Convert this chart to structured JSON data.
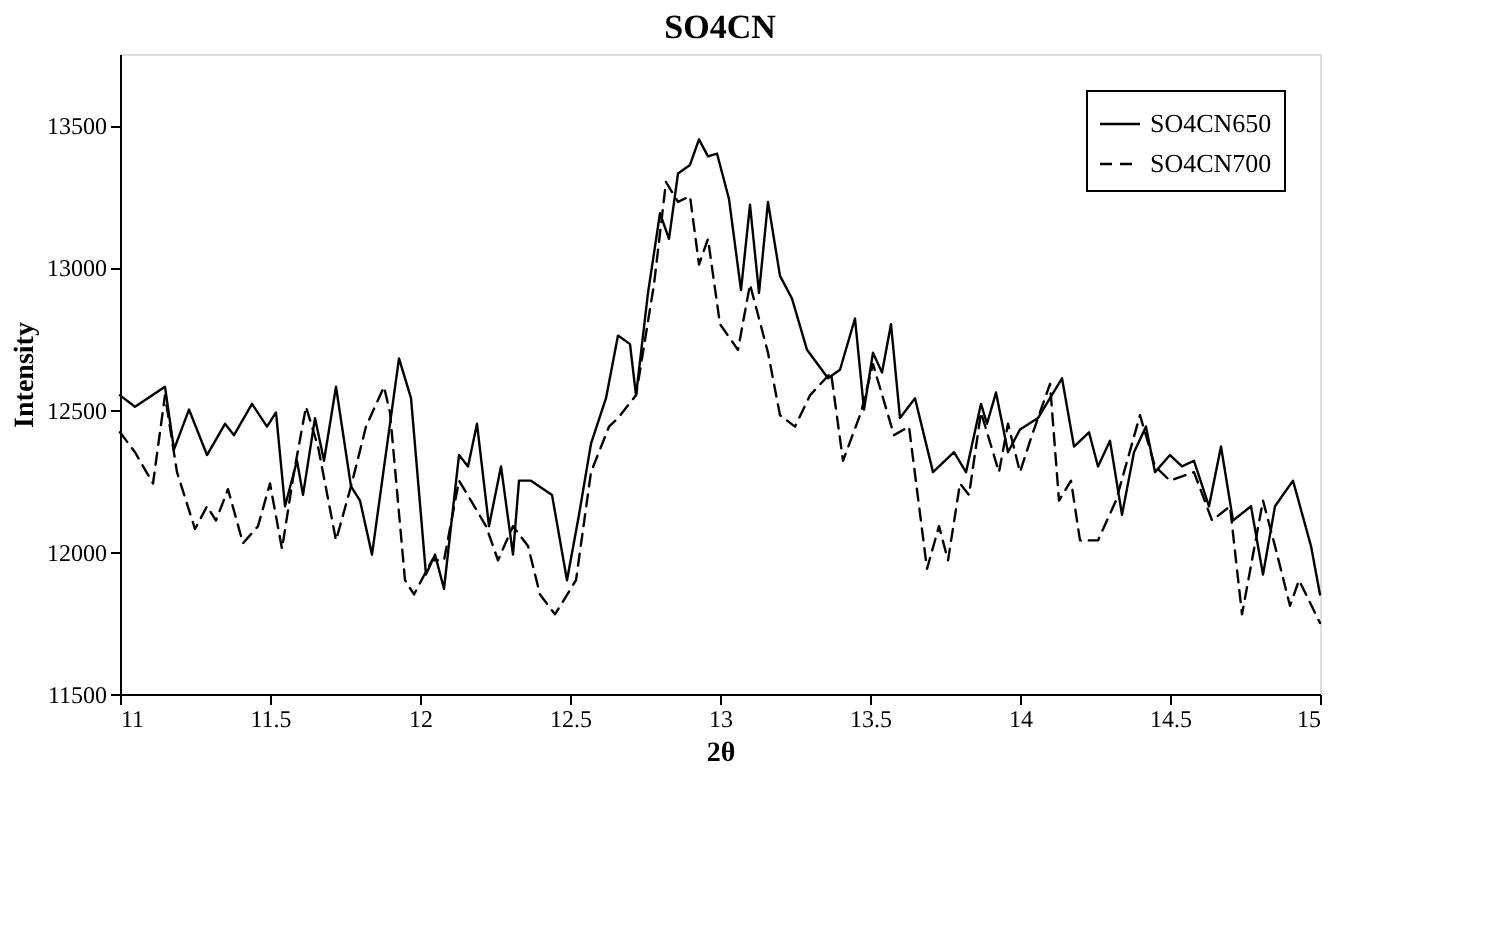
{
  "chart_data": {
    "type": "line",
    "title": "SO4CN",
    "xlabel": "2θ",
    "ylabel": "Intensity",
    "xlim": [
      11,
      15
    ],
    "xticks": [
      11,
      11.5,
      12,
      12.5,
      13,
      13.5,
      14,
      14.5,
      15
    ],
    "ylim": [
      11500,
      13750
    ],
    "yticks": [
      11500,
      12000,
      12500,
      13000,
      13500
    ],
    "grid": false,
    "legend": "top right",
    "marker": "none",
    "series": [
      {
        "name": "SO4CN650",
        "color": "#000000",
        "line_style": "solid",
        "x": [
          11.0,
          11.05,
          11.15,
          11.18,
          11.23,
          11.29,
          11.35,
          11.38,
          11.44,
          11.49,
          11.52,
          11.55,
          11.59,
          11.61,
          11.65,
          11.68,
          11.72,
          11.77,
          11.8,
          11.84,
          11.93,
          11.97,
          12.02,
          12.05,
          12.08,
          12.13,
          12.16,
          12.19,
          12.23,
          12.27,
          12.31,
          12.33,
          12.37,
          12.44,
          12.49,
          12.53,
          12.57,
          12.62,
          12.66,
          12.7,
          12.72,
          12.76,
          12.8,
          12.83,
          12.86,
          12.9,
          12.93,
          12.96,
          12.99,
          13.03,
          13.07,
          13.1,
          13.13,
          13.16,
          13.2,
          13.24,
          13.29,
          13.36,
          13.4,
          13.45,
          13.48,
          13.51,
          13.54,
          13.57,
          13.6,
          13.65,
          13.71,
          13.78,
          13.82,
          13.87,
          13.89,
          13.92,
          13.96,
          14.0,
          14.06,
          14.1,
          14.14,
          14.18,
          14.23,
          14.26,
          14.3,
          14.34,
          14.38,
          14.42,
          14.45,
          14.5,
          14.54,
          14.58,
          14.63,
          14.67,
          14.71,
          14.77,
          14.81,
          14.85,
          14.91,
          14.97,
          15.0
        ],
        "values": [
          12550,
          12510,
          12580,
          12360,
          12500,
          12340,
          12450,
          12410,
          12520,
          12440,
          12490,
          12160,
          12320,
          12200,
          12470,
          12320,
          12580,
          12230,
          12180,
          11990,
          12680,
          12540,
          11920,
          11990,
          11870,
          12340,
          12300,
          12450,
          12090,
          12300,
          11990,
          12250,
          12250,
          12200,
          11900,
          12130,
          12380,
          12540,
          12760,
          12730,
          12550,
          12910,
          13190,
          13100,
          13330,
          13360,
          13450,
          13390,
          13400,
          13240,
          12920,
          13220,
          12910,
          13230,
          12970,
          12890,
          12710,
          12610,
          12640,
          12820,
          12500,
          12700,
          12630,
          12800,
          12470,
          12540,
          12280,
          12350,
          12280,
          12520,
          12450,
          12560,
          12350,
          12430,
          12470,
          12540,
          12610,
          12370,
          12420,
          12300,
          12390,
          12130,
          12350,
          12440,
          12280,
          12340,
          12300,
          12320,
          12160,
          12370,
          12110,
          12160,
          11920,
          12160,
          12250,
          12020,
          11850
        ]
      },
      {
        "name": "SO4CN700",
        "color": "#000000",
        "line_style": "dashed",
        "x": [
          11.0,
          11.05,
          11.11,
          11.15,
          11.19,
          11.25,
          11.29,
          11.32,
          11.36,
          11.41,
          11.46,
          11.5,
          11.54,
          11.58,
          11.62,
          11.66,
          11.72,
          11.77,
          11.82,
          11.88,
          11.9,
          11.95,
          11.98,
          12.04,
          12.08,
          12.13,
          12.17,
          12.22,
          12.26,
          12.31,
          12.36,
          12.4,
          12.45,
          12.52,
          12.57,
          12.63,
          12.66,
          12.72,
          12.78,
          12.82,
          12.86,
          12.9,
          12.93,
          12.96,
          13.0,
          13.06,
          13.1,
          13.16,
          13.2,
          13.25,
          13.3,
          13.37,
          13.41,
          13.47,
          13.51,
          13.58,
          13.63,
          13.69,
          13.73,
          13.76,
          13.8,
          13.83,
          13.87,
          13.93,
          13.96,
          14.0,
          14.04,
          14.1,
          14.13,
          14.17,
          14.2,
          14.26,
          14.32,
          14.4,
          14.45,
          14.5,
          14.58,
          14.64,
          14.7,
          14.74,
          14.81,
          14.85,
          14.9,
          14.93,
          15.0
        ],
        "values": [
          12420,
          12350,
          12240,
          12550,
          12280,
          12080,
          12160,
          12110,
          12220,
          12030,
          12090,
          12240,
          12010,
          12280,
          12510,
          12370,
          12040,
          12230,
          12440,
          12580,
          12490,
          11900,
          11850,
          11970,
          11970,
          12250,
          12180,
          12090,
          11970,
          12090,
          12020,
          11850,
          11780,
          11900,
          12280,
          12440,
          12470,
          12550,
          12940,
          13300,
          13230,
          13250,
          13010,
          13100,
          12800,
          12710,
          12940,
          12700,
          12480,
          12440,
          12550,
          12630,
          12320,
          12490,
          12660,
          12410,
          12440,
          11940,
          12090,
          11970,
          12240,
          12200,
          12490,
          12280,
          12450,
          12280,
          12410,
          12590,
          12180,
          12250,
          12040,
          12040,
          12180,
          12480,
          12300,
          12250,
          12280,
          12110,
          12160,
          11780,
          12180,
          12020,
          11810,
          11900,
          11750
        ]
      }
    ]
  }
}
